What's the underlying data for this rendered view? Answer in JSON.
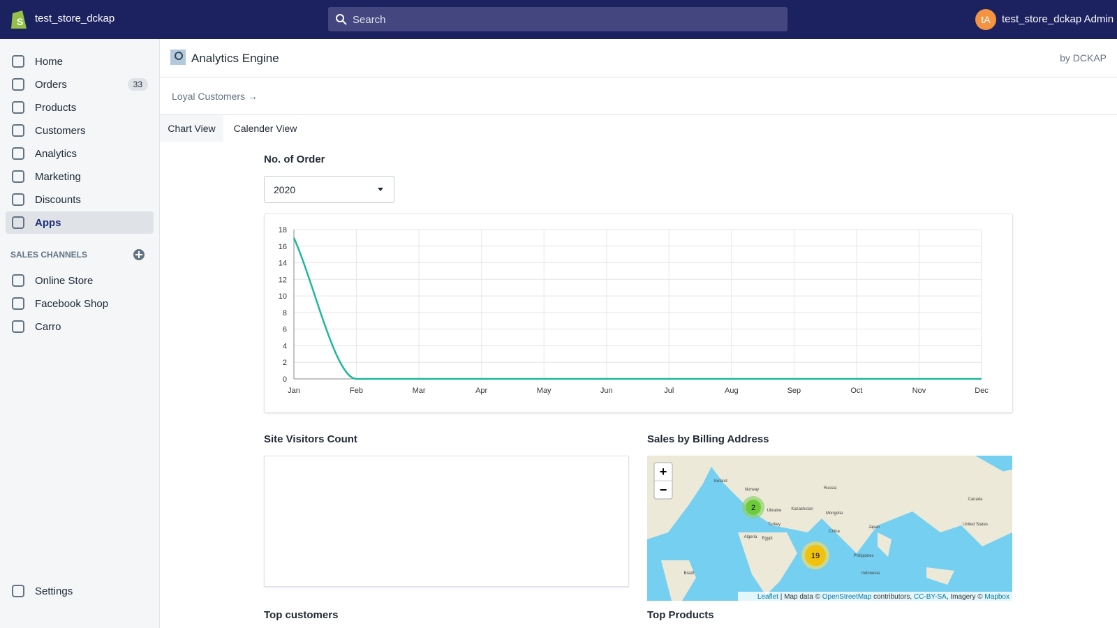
{
  "topbar": {
    "store_name": "test_store_dckap",
    "search_placeholder": "Search",
    "avatar_initials": "tA",
    "user_name": "test_store_dckap Admin"
  },
  "sidebar": {
    "nav": [
      {
        "label": "Home"
      },
      {
        "label": "Orders",
        "badge": 33
      },
      {
        "label": "Products"
      },
      {
        "label": "Customers"
      },
      {
        "label": "Analytics"
      },
      {
        "label": "Marketing"
      },
      {
        "label": "Discounts"
      },
      {
        "label": "Apps",
        "active": true
      }
    ],
    "sales_channels_title": "SALES CHANNELS",
    "channels": [
      {
        "label": "Online Store"
      },
      {
        "label": "Facebook Shop"
      },
      {
        "label": "Carro"
      }
    ],
    "settings": "Settings"
  },
  "app": {
    "title": "Analytics Engine",
    "vendor": "by DCKAP",
    "breadcrumb": "Loyal Customers →",
    "tabs": [
      {
        "label": "Chart View",
        "active": true
      },
      {
        "label": "Calender View"
      }
    ],
    "orders_title": "No. of Order",
    "year_select": "2020",
    "visitors_title": "Site Visitors Count",
    "map_title": "Sales by Billing Address",
    "top_customers": "Top customers",
    "top_products": "Top Products",
    "map": {
      "zoom_in": "+",
      "zoom_out": "−",
      "clusters": [
        2,
        19
      ],
      "labels": [
        "Russia",
        "Kazakhstan",
        "Mongolia",
        "China",
        "Japan",
        "Canada",
        "United States",
        "Iceland",
        "Norway",
        "Ukraine",
        "Turkey",
        "Egypt",
        "Algeria",
        "Brazil",
        "Philippines",
        "Indonesia"
      ],
      "attribution": [
        {
          "text": "Leaflet",
          "link": true
        },
        {
          "text": " | Map data © "
        },
        {
          "text": "OpenStreetMap",
          "link": true
        },
        {
          "text": " contributors, "
        },
        {
          "text": "CC-BY-SA",
          "link": true
        },
        {
          "text": ", Imagery © "
        },
        {
          "text": "Mapbox",
          "link": true
        }
      ]
    }
  },
  "chart_data": {
    "type": "line",
    "categories": [
      "Jan",
      "Feb",
      "Mar",
      "Apr",
      "May",
      "Jun",
      "Jul",
      "Aug",
      "Sep",
      "Oct",
      "Nov",
      "Dec"
    ],
    "values": [
      17,
      0,
      0,
      0,
      0,
      0,
      0,
      0,
      0,
      0,
      0,
      0
    ],
    "color": "#1fb89a",
    "ylim": [
      0,
      18
    ],
    "yticks": [
      0,
      2,
      4,
      6,
      8,
      10,
      12,
      14,
      16,
      18
    ],
    "grid": true
  }
}
